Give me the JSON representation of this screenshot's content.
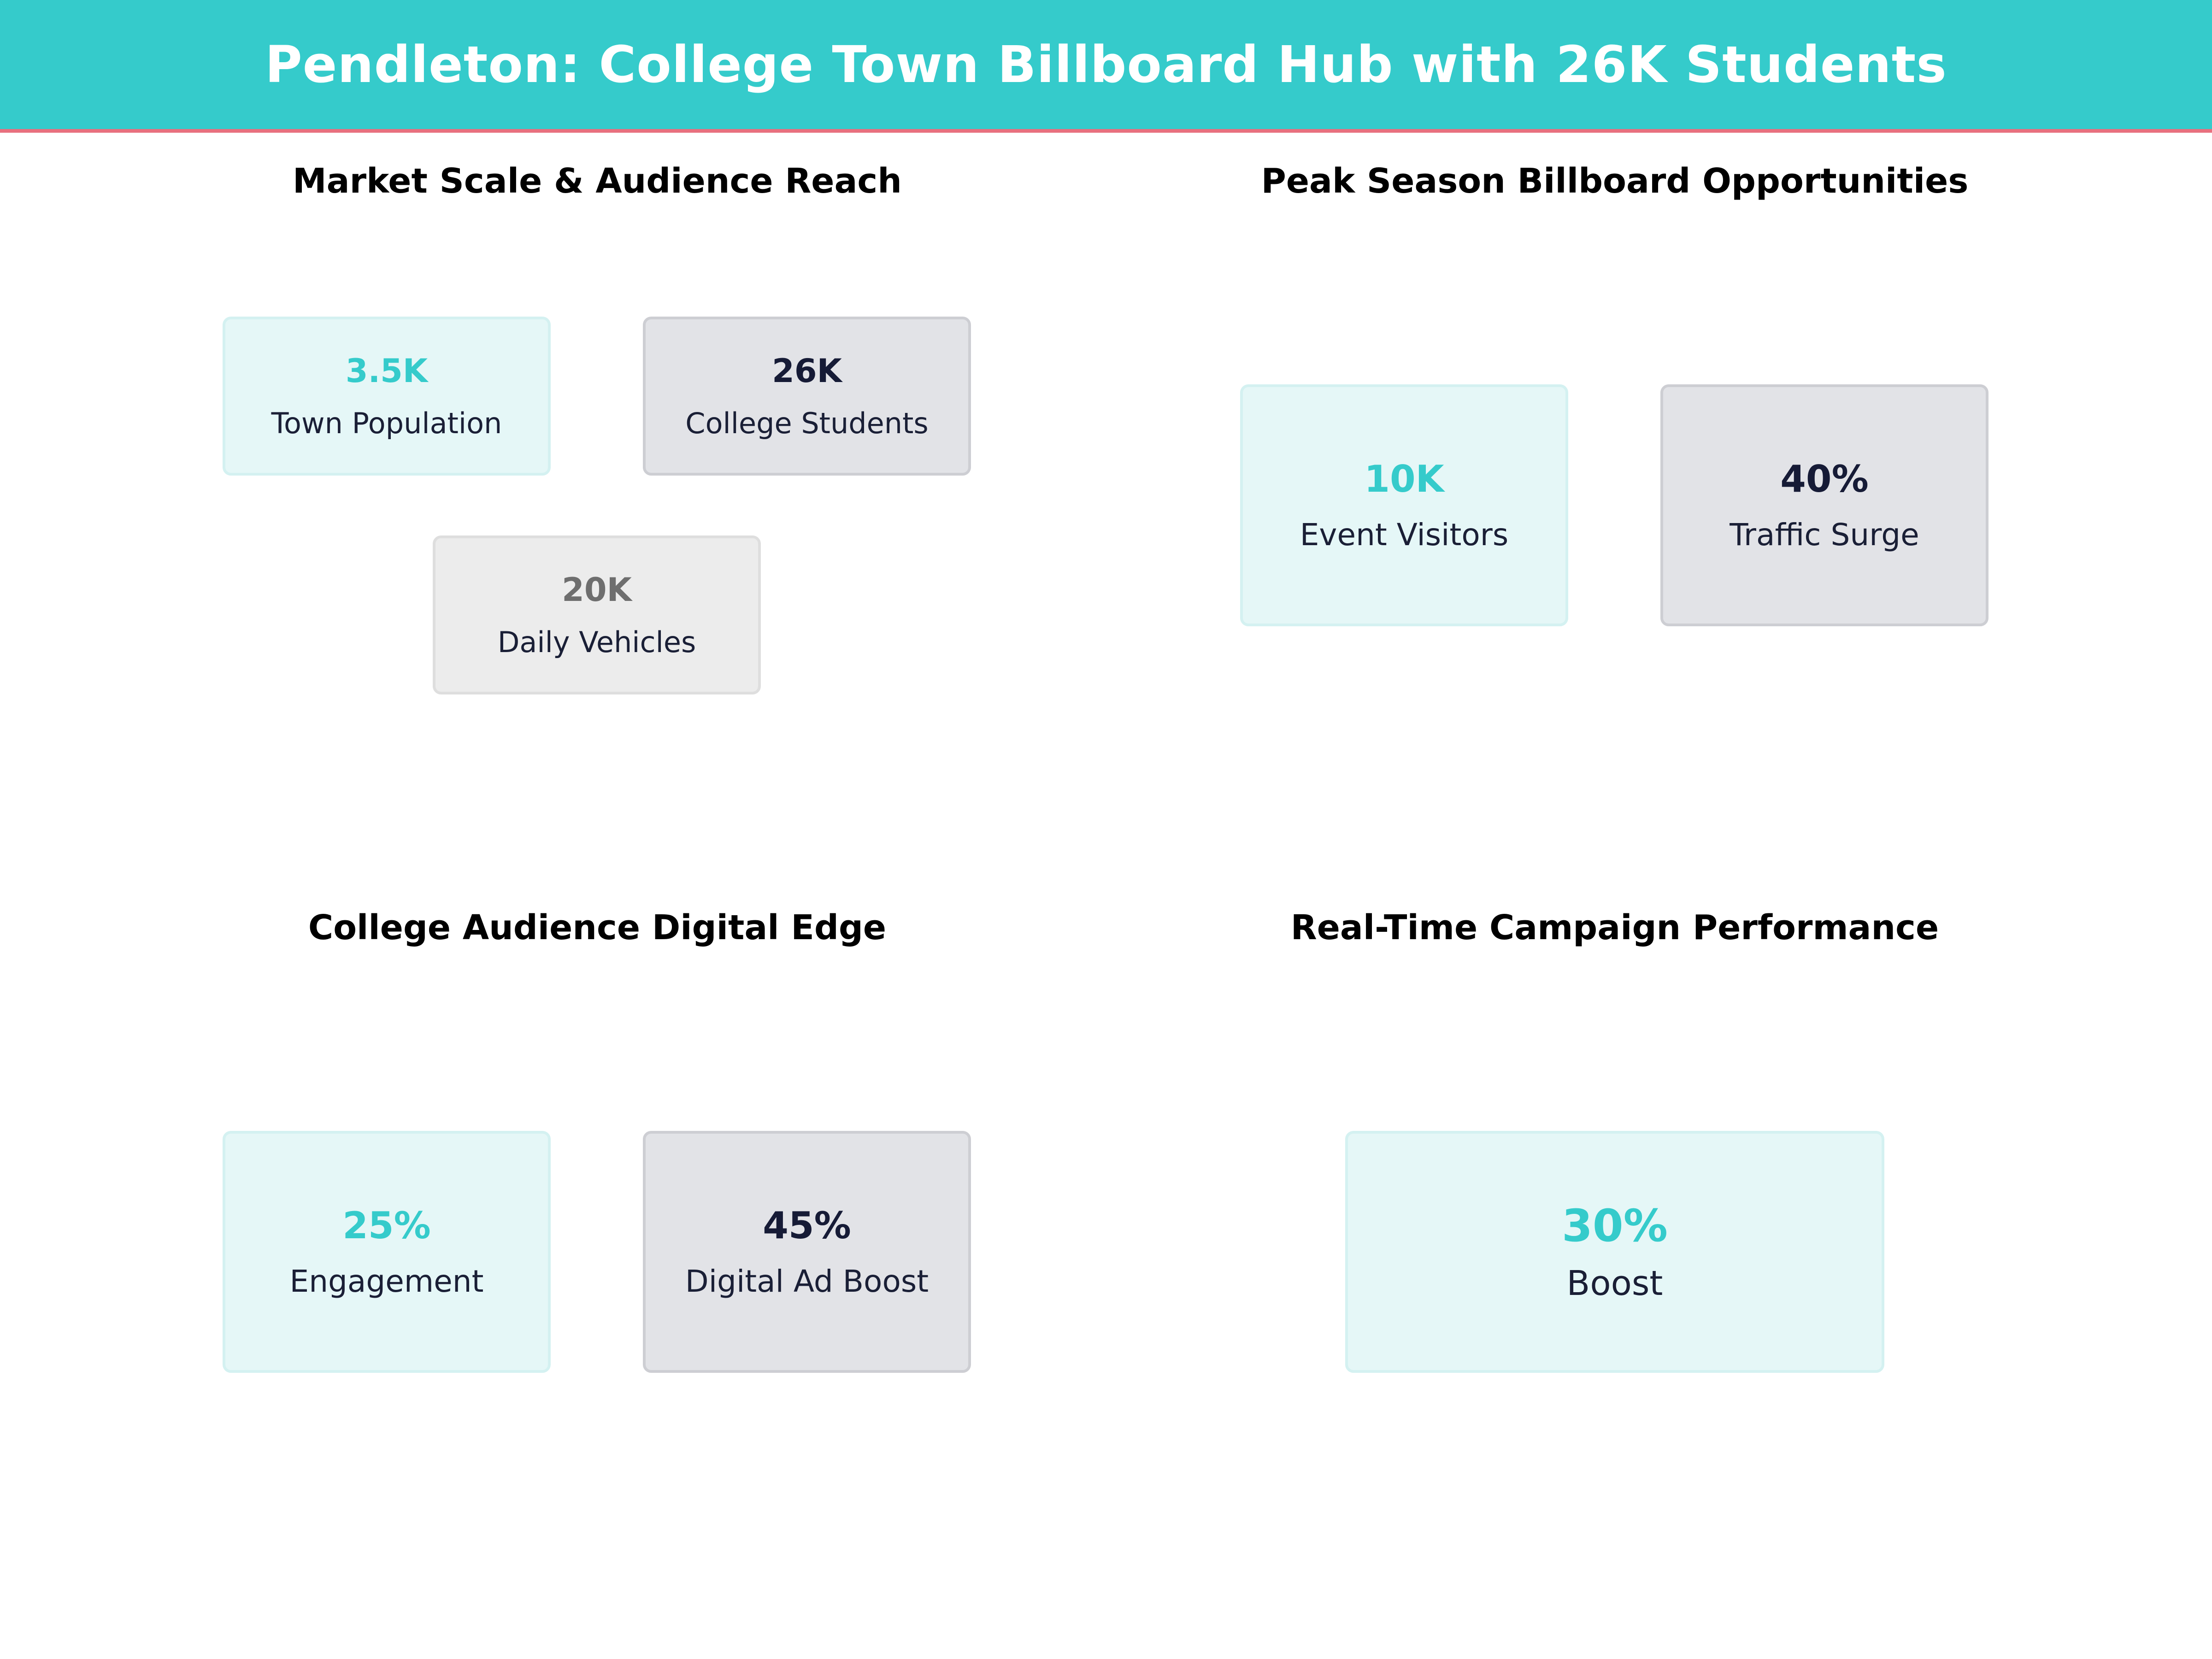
{
  "header": {
    "title": "Pendleton: College Town Billboard Hub with 26K Students",
    "background": "#35CBCB",
    "accent_line": "#E8707E"
  },
  "panels": {
    "market": {
      "title": "Market Scale & Audience Reach",
      "cards": [
        {
          "value": "3.5K",
          "label": "Town Population",
          "style": "teal"
        },
        {
          "value": "26K",
          "label": "College Students",
          "style": "navy"
        },
        {
          "value": "20K",
          "label": "Daily Vehicles",
          "style": "gray"
        }
      ]
    },
    "peak": {
      "title": "Peak Season Billboard Opportunities",
      "cards": [
        {
          "value": "10K",
          "label": "Event Visitors",
          "style": "teal"
        },
        {
          "value": "40%",
          "label": "Traffic Surge",
          "style": "navy"
        }
      ]
    },
    "digital": {
      "title": "College Audience Digital Edge",
      "cards": [
        {
          "value": "25%",
          "label": "Engagement",
          "style": "teal"
        },
        {
          "value": "45%",
          "label": "Digital Ad Boost",
          "style": "navy"
        }
      ]
    },
    "realtime": {
      "title": "Real-Time Campaign Performance",
      "cards": [
        {
          "value": "30%",
          "label": "Boost",
          "style": "teal"
        }
      ]
    }
  },
  "colors": {
    "teal": "#35CBCB",
    "navy": "#161B36",
    "gray": "#6E6E6E"
  }
}
